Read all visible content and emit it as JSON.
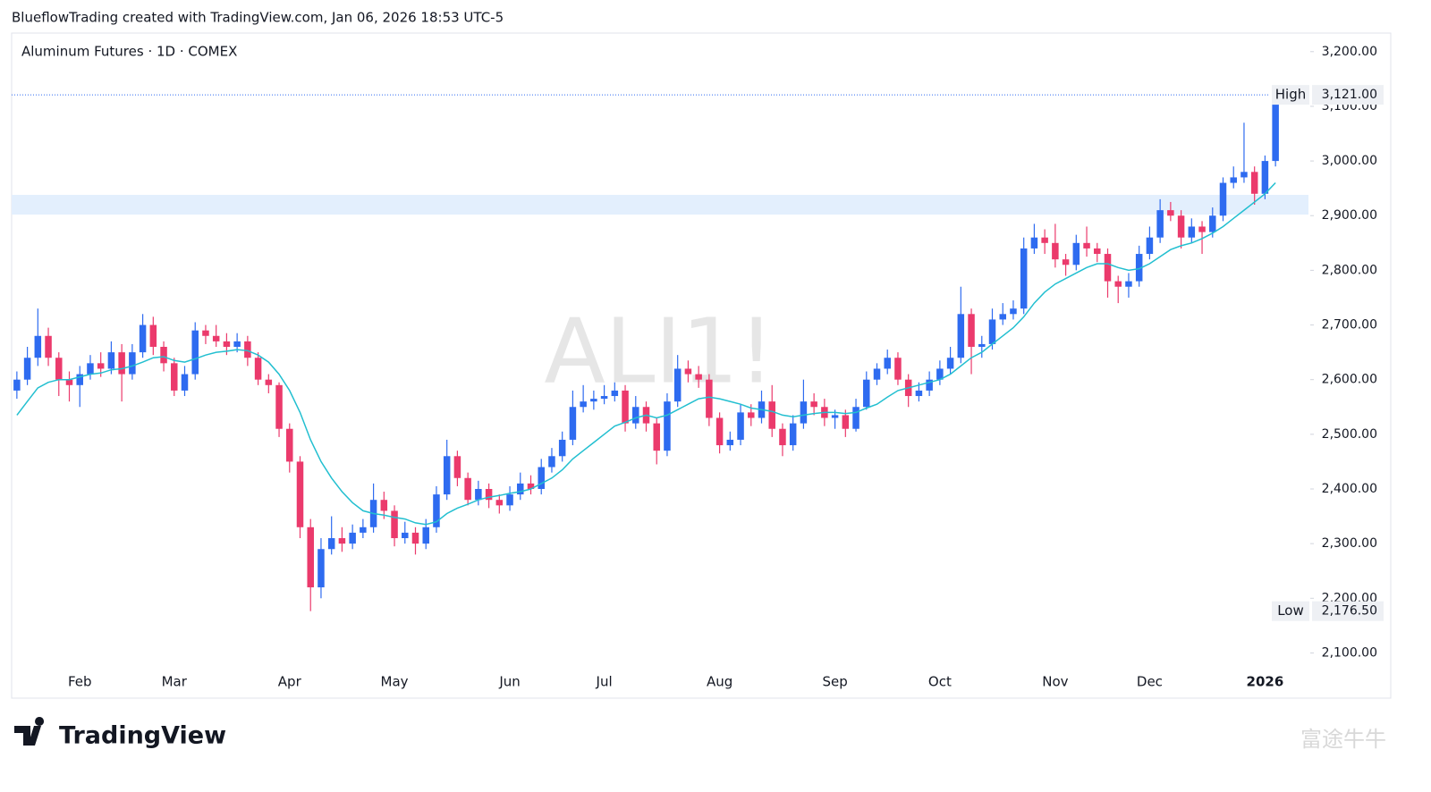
{
  "chart_data": {
    "type": "candlestick",
    "header": "BlueflowTrading created with TradingView.com, Jan 06, 2026 18:53 UTC-5",
    "title": "Aluminum Futures · 1D · COMEX",
    "watermark": "ALI1!",
    "brand": "TradingView",
    "corner_mark": "富途牛牛",
    "up_color": "#2e6bf0",
    "down_color": "#eb3a6c",
    "ylim": [
      2068,
      3234
    ],
    "yticks": [
      {
        "value": 2100,
        "label": "2,100.00"
      },
      {
        "value": 2200,
        "label": "2,200.00"
      },
      {
        "value": 2300,
        "label": "2,300.00"
      },
      {
        "value": 2400,
        "label": "2,400.00"
      },
      {
        "value": 2500,
        "label": "2,500.00"
      },
      {
        "value": 2600,
        "label": "2,600.00"
      },
      {
        "value": 2700,
        "label": "2,700.00"
      },
      {
        "value": 2800,
        "label": "2,800.00"
      },
      {
        "value": 2900,
        "label": "2,900.00"
      },
      {
        "value": 3000,
        "label": "3,000.00"
      },
      {
        "value": 3100,
        "label": "3,100.00"
      },
      {
        "value": 3200,
        "label": "3,200.00"
      }
    ],
    "high": {
      "label": "High",
      "value": 3121,
      "value_label": "3,121.00"
    },
    "low": {
      "label": "Low",
      "value": 2176.5,
      "value_label": "2,176.50"
    },
    "zone": [
      2902,
      2938
    ],
    "zone_color": "#e3effd",
    "categories": [
      null,
      null,
      null,
      null,
      null,
      null,
      "Feb",
      null,
      null,
      null,
      null,
      null,
      null,
      null,
      null,
      "Mar",
      null,
      null,
      null,
      null,
      null,
      null,
      null,
      null,
      null,
      null,
      "Apr",
      null,
      null,
      null,
      null,
      null,
      null,
      null,
      null,
      null,
      "May",
      null,
      null,
      null,
      null,
      null,
      null,
      null,
      null,
      null,
      null,
      "Jun",
      null,
      null,
      null,
      null,
      null,
      null,
      null,
      null,
      "Jul",
      null,
      null,
      null,
      null,
      null,
      null,
      null,
      null,
      null,
      null,
      "Aug",
      null,
      null,
      null,
      null,
      null,
      null,
      null,
      null,
      null,
      null,
      "Sep",
      null,
      null,
      null,
      null,
      null,
      null,
      null,
      null,
      null,
      "Oct",
      null,
      null,
      null,
      null,
      null,
      null,
      null,
      null,
      null,
      null,
      "Nov",
      null,
      null,
      null,
      null,
      null,
      null,
      null,
      null,
      "Dec",
      null,
      null,
      null,
      null,
      null,
      null,
      null,
      null,
      null,
      null,
      "2026",
      null
    ],
    "candles": [
      [
        2580,
        2615,
        2565,
        2600
      ],
      [
        2600,
        2660,
        2590,
        2640
      ],
      [
        2640,
        2730,
        2625,
        2680
      ],
      [
        2680,
        2695,
        2625,
        2640
      ],
      [
        2640,
        2650,
        2570,
        2600
      ],
      [
        2600,
        2615,
        2560,
        2590
      ],
      [
        2590,
        2625,
        2550,
        2610
      ],
      [
        2610,
        2645,
        2600,
        2630
      ],
      [
        2630,
        2650,
        2605,
        2620
      ],
      [
        2620,
        2670,
        2610,
        2650
      ],
      [
        2650,
        2665,
        2560,
        2610
      ],
      [
        2610,
        2665,
        2600,
        2650
      ],
      [
        2650,
        2720,
        2640,
        2700
      ],
      [
        2700,
        2715,
        2645,
        2660
      ],
      [
        2660,
        2670,
        2615,
        2630
      ],
      [
        2630,
        2640,
        2570,
        2580
      ],
      [
        2580,
        2625,
        2570,
        2610
      ],
      [
        2610,
        2705,
        2600,
        2690
      ],
      [
        2690,
        2700,
        2665,
        2680
      ],
      [
        2680,
        2700,
        2660,
        2670
      ],
      [
        2670,
        2685,
        2645,
        2660
      ],
      [
        2660,
        2685,
        2650,
        2670
      ],
      [
        2670,
        2680,
        2625,
        2640
      ],
      [
        2640,
        2650,
        2590,
        2600
      ],
      [
        2600,
        2610,
        2575,
        2590
      ],
      [
        2590,
        2595,
        2495,
        2510
      ],
      [
        2510,
        2520,
        2430,
        2450
      ],
      [
        2450,
        2460,
        2310,
        2330
      ],
      [
        2330,
        2345,
        2176.5,
        2220
      ],
      [
        2220,
        2310,
        2200,
        2290
      ],
      [
        2290,
        2350,
        2280,
        2310
      ],
      [
        2310,
        2330,
        2285,
        2300
      ],
      [
        2300,
        2335,
        2290,
        2320
      ],
      [
        2320,
        2345,
        2310,
        2330
      ],
      [
        2330,
        2410,
        2320,
        2380
      ],
      [
        2380,
        2395,
        2345,
        2360
      ],
      [
        2360,
        2370,
        2295,
        2310
      ],
      [
        2310,
        2340,
        2300,
        2320
      ],
      [
        2320,
        2330,
        2280,
        2300
      ],
      [
        2300,
        2345,
        2290,
        2330
      ],
      [
        2330,
        2405,
        2320,
        2390
      ],
      [
        2390,
        2490,
        2380,
        2460
      ],
      [
        2460,
        2470,
        2405,
        2420
      ],
      [
        2420,
        2430,
        2370,
        2380
      ],
      [
        2380,
        2415,
        2370,
        2400
      ],
      [
        2400,
        2410,
        2365,
        2380
      ],
      [
        2380,
        2390,
        2355,
        2370
      ],
      [
        2370,
        2405,
        2360,
        2390
      ],
      [
        2390,
        2430,
        2380,
        2410
      ],
      [
        2410,
        2425,
        2390,
        2400
      ],
      [
        2400,
        2455,
        2390,
        2440
      ],
      [
        2440,
        2475,
        2430,
        2460
      ],
      [
        2460,
        2505,
        2450,
        2490
      ],
      [
        2490,
        2580,
        2480,
        2550
      ],
      [
        2550,
        2590,
        2540,
        2560
      ],
      [
        2560,
        2580,
        2545,
        2565
      ],
      [
        2565,
        2590,
        2555,
        2570
      ],
      [
        2570,
        2595,
        2560,
        2580
      ],
      [
        2580,
        2590,
        2505,
        2520
      ],
      [
        2520,
        2570,
        2510,
        2550
      ],
      [
        2550,
        2560,
        2505,
        2520
      ],
      [
        2520,
        2530,
        2445,
        2470
      ],
      [
        2470,
        2575,
        2460,
        2560
      ],
      [
        2560,
        2645,
        2550,
        2620
      ],
      [
        2620,
        2635,
        2595,
        2610
      ],
      [
        2610,
        2625,
        2585,
        2600
      ],
      [
        2600,
        2610,
        2515,
        2530
      ],
      [
        2530,
        2540,
        2465,
        2480
      ],
      [
        2480,
        2505,
        2470,
        2490
      ],
      [
        2490,
        2555,
        2480,
        2540
      ],
      [
        2540,
        2555,
        2515,
        2530
      ],
      [
        2530,
        2580,
        2520,
        2560
      ],
      [
        2560,
        2590,
        2495,
        2510
      ],
      [
        2510,
        2520,
        2460,
        2480
      ],
      [
        2480,
        2535,
        2470,
        2520
      ],
      [
        2520,
        2600,
        2510,
        2560
      ],
      [
        2560,
        2575,
        2535,
        2550
      ],
      [
        2550,
        2565,
        2515,
        2530
      ],
      [
        2530,
        2545,
        2510,
        2535
      ],
      [
        2535,
        2545,
        2495,
        2510
      ],
      [
        2510,
        2565,
        2505,
        2550
      ],
      [
        2550,
        2615,
        2545,
        2600
      ],
      [
        2600,
        2630,
        2590,
        2620
      ],
      [
        2620,
        2655,
        2610,
        2640
      ],
      [
        2640,
        2650,
        2590,
        2600
      ],
      [
        2600,
        2610,
        2550,
        2570
      ],
      [
        2570,
        2595,
        2560,
        2580
      ],
      [
        2580,
        2615,
        2570,
        2600
      ],
      [
        2600,
        2635,
        2590,
        2620
      ],
      [
        2620,
        2660,
        2610,
        2640
      ],
      [
        2640,
        2770,
        2630,
        2720
      ],
      [
        2720,
        2730,
        2610,
        2660
      ],
      [
        2660,
        2680,
        2640,
        2665
      ],
      [
        2665,
        2730,
        2655,
        2710
      ],
      [
        2710,
        2740,
        2700,
        2720
      ],
      [
        2720,
        2745,
        2710,
        2730
      ],
      [
        2730,
        2860,
        2720,
        2840
      ],
      [
        2840,
        2885,
        2830,
        2860
      ],
      [
        2860,
        2875,
        2830,
        2850
      ],
      [
        2850,
        2885,
        2805,
        2820
      ],
      [
        2820,
        2830,
        2790,
        2810
      ],
      [
        2810,
        2865,
        2800,
        2850
      ],
      [
        2850,
        2880,
        2825,
        2840
      ],
      [
        2840,
        2850,
        2815,
        2830
      ],
      [
        2830,
        2840,
        2750,
        2780
      ],
      [
        2780,
        2790,
        2740,
        2770
      ],
      [
        2770,
        2795,
        2750,
        2780
      ],
      [
        2780,
        2845,
        2770,
        2830
      ],
      [
        2830,
        2880,
        2820,
        2860
      ],
      [
        2860,
        2930,
        2850,
        2910
      ],
      [
        2910,
        2925,
        2890,
        2900
      ],
      [
        2900,
        2910,
        2840,
        2860
      ],
      [
        2860,
        2895,
        2850,
        2880
      ],
      [
        2880,
        2890,
        2830,
        2870
      ],
      [
        2870,
        2915,
        2860,
        2900
      ],
      [
        2900,
        2970,
        2890,
        2960
      ],
      [
        2960,
        2990,
        2950,
        2970
      ],
      [
        2970,
        3070,
        2960,
        2980
      ],
      [
        2980,
        2990,
        2920,
        2940
      ],
      [
        2940,
        3010,
        2930,
        3000
      ],
      [
        3000,
        3121,
        2990,
        3110
      ]
    ],
    "ma": {
      "color": "#22bfd0",
      "values": [
        2535,
        2560,
        2585,
        2595,
        2600,
        2600,
        2605,
        2610,
        2612,
        2618,
        2620,
        2625,
        2632,
        2640,
        2642,
        2635,
        2632,
        2638,
        2645,
        2650,
        2652,
        2655,
        2653,
        2645,
        2632,
        2610,
        2580,
        2540,
        2490,
        2450,
        2420,
        2395,
        2375,
        2360,
        2355,
        2352,
        2348,
        2345,
        2338,
        2335,
        2340,
        2355,
        2365,
        2372,
        2380,
        2385,
        2388,
        2392,
        2395,
        2400,
        2410,
        2420,
        2435,
        2455,
        2470,
        2485,
        2500,
        2515,
        2522,
        2530,
        2535,
        2530,
        2535,
        2545,
        2555,
        2565,
        2568,
        2565,
        2560,
        2555,
        2548,
        2545,
        2542,
        2535,
        2532,
        2535,
        2538,
        2540,
        2540,
        2538,
        2540,
        2548,
        2555,
        2568,
        2580,
        2585,
        2590,
        2595,
        2600,
        2610,
        2625,
        2640,
        2650,
        2665,
        2680,
        2695,
        2715,
        2740,
        2760,
        2775,
        2785,
        2795,
        2805,
        2812,
        2812,
        2805,
        2800,
        2803,
        2812,
        2825,
        2838,
        2845,
        2850,
        2858,
        2868,
        2880,
        2895,
        2910,
        2925,
        2940,
        2960
      ]
    }
  }
}
